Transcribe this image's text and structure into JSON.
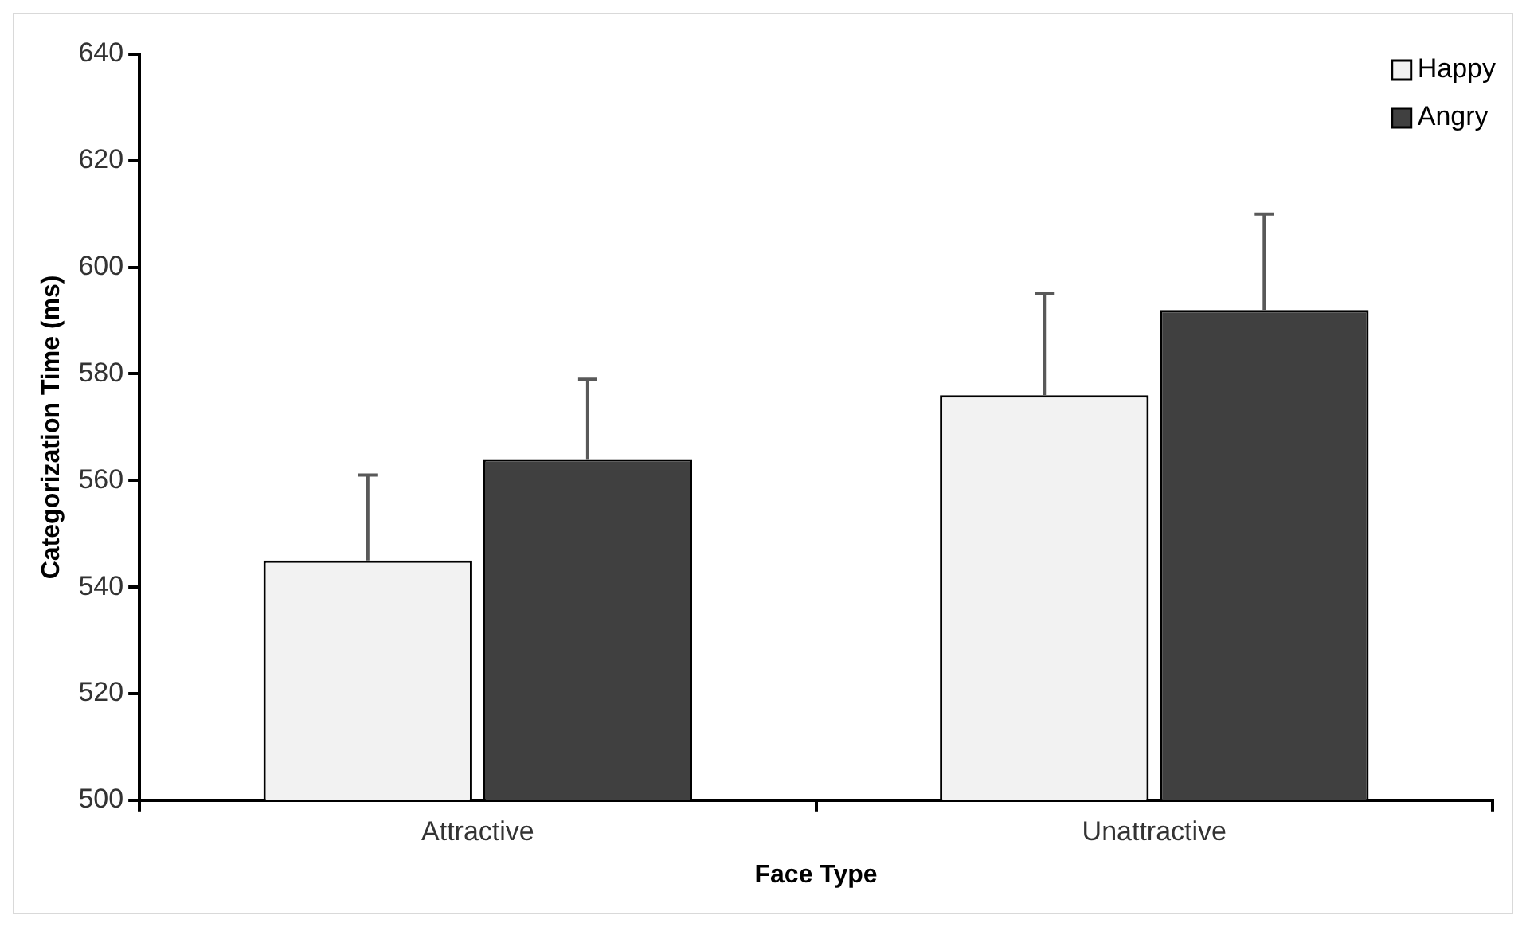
{
  "chart_data": {
    "type": "bar",
    "xlabel": "Face Type",
    "ylabel": "Categorization Time (ms)",
    "categories": [
      "Attractive",
      "Unattractive"
    ],
    "series": [
      {
        "name": "Happy",
        "color": "#f2f2f2",
        "values": [
          545,
          576
        ],
        "errors": [
          [
            545,
            561
          ],
          [
            576,
            595
          ]
        ]
      },
      {
        "name": "Angry",
        "color": "#404040",
        "values": [
          564,
          592
        ],
        "errors": [
          [
            564,
            579
          ],
          [
            592,
            610
          ]
        ]
      }
    ],
    "ylim": [
      500,
      640
    ],
    "yticks": [
      500,
      520,
      540,
      560,
      580,
      600,
      620,
      640
    ],
    "grid": false,
    "legend": "top right"
  }
}
